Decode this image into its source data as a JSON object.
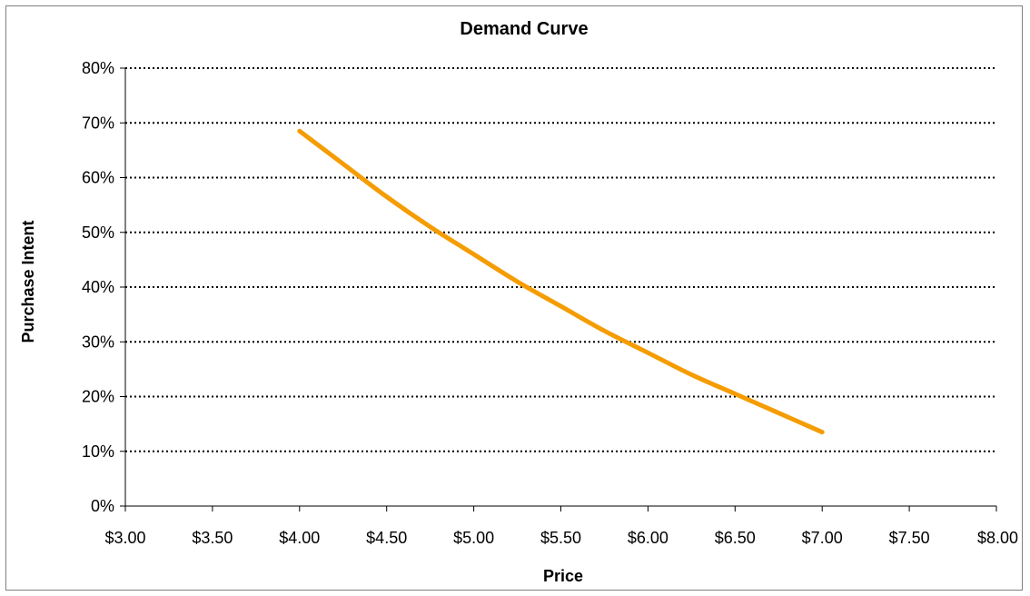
{
  "chart_data": {
    "type": "line",
    "title": "Demand Curve",
    "xlabel": "Price",
    "ylabel": "Purchase Intent",
    "xlim": [
      3.0,
      8.0
    ],
    "ylim": [
      0,
      0.8
    ],
    "x_ticks": [
      3.0,
      3.5,
      4.0,
      4.5,
      5.0,
      5.5,
      6.0,
      6.5,
      7.0,
      7.5,
      8.0
    ],
    "x_tick_labels": [
      "$3.00",
      "$3.50",
      "$4.00",
      "$4.50",
      "$5.00",
      "$5.50",
      "$6.00",
      "$6.50",
      "$7.00",
      "$7.50",
      "$8.00"
    ],
    "y_ticks": [
      0,
      0.1,
      0.2,
      0.3,
      0.4,
      0.5,
      0.6,
      0.7,
      0.8
    ],
    "y_tick_labels": [
      "0%",
      "10%",
      "20%",
      "30%",
      "40%",
      "50%",
      "60%",
      "70%",
      "80%"
    ],
    "grid": "horizontal-dotted",
    "legend": "none",
    "series": [
      {
        "color": "#f59c00",
        "x": [
          4.0,
          4.25,
          4.5,
          4.75,
          5.0,
          5.25,
          5.5,
          5.75,
          6.0,
          6.25,
          6.5,
          6.75,
          7.0
        ],
        "y": [
          0.685,
          0.625,
          0.565,
          0.51,
          0.46,
          0.41,
          0.365,
          0.32,
          0.28,
          0.24,
          0.205,
          0.17,
          0.135
        ]
      }
    ]
  }
}
